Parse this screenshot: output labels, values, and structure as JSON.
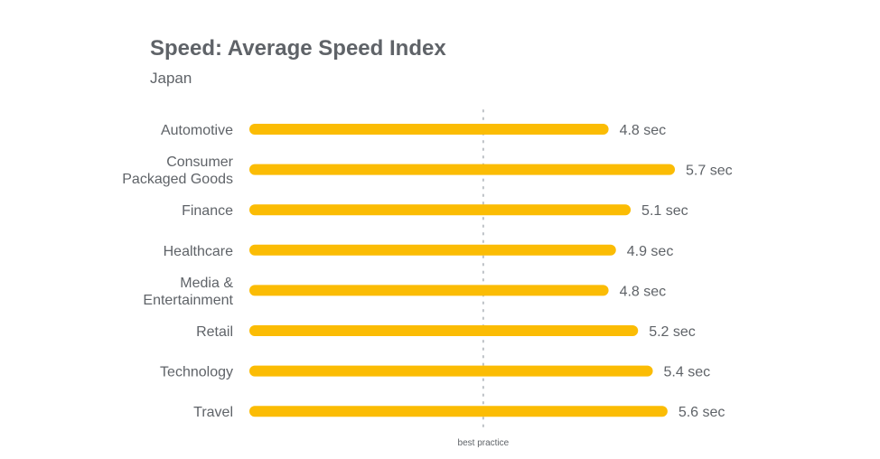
{
  "chart_data": {
    "type": "bar",
    "orientation": "horizontal",
    "title": "Speed: Average Speed Index",
    "subtitle": "Japan",
    "categories": [
      [
        "Automotive"
      ],
      [
        "Consumer",
        "Packaged Goods"
      ],
      [
        "Finance"
      ],
      [
        "Healthcare"
      ],
      [
        "Media &",
        "Entertainment"
      ],
      [
        "Retail"
      ],
      [
        "Technology"
      ],
      [
        "Travel"
      ]
    ],
    "values": [
      4.8,
      5.7,
      5.1,
      4.9,
      4.8,
      5.2,
      5.4,
      5.6
    ],
    "value_labels": [
      "4.8 sec",
      "5.7 sec",
      "5.1 sec",
      "4.9 sec",
      "4.8 sec",
      "5.2 sec",
      "5.4 sec",
      "5.6 sec"
    ],
    "xlim": [
      0,
      5.7
    ],
    "reference_line": {
      "value": 3.1,
      "label": "best practice"
    },
    "bar_color": "#fbbc04",
    "text_color": "#5f6368",
    "grid": false,
    "legend": "none"
  }
}
